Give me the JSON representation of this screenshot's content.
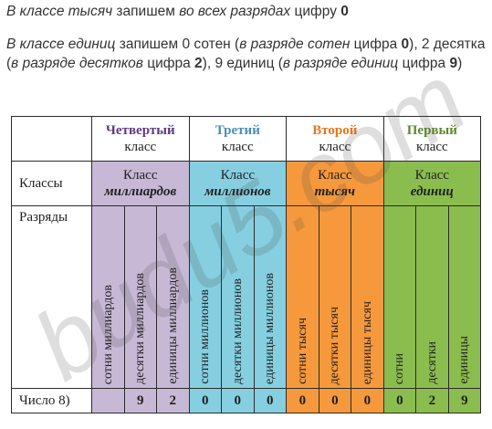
{
  "intro": {
    "line1_italic": "В классе тысяч",
    "line1_mid": " запишем ",
    "line1_italic2": "во всех разрядах",
    "line1_after": " цифру ",
    "line1_digit": "0"
  },
  "explain": {
    "s1_italic": "В классе единиц",
    "s1_text": " запишем 0 сотен (",
    "s1_paren_italic": "в разряде сотен",
    "s1_paren_text": " цифра ",
    "s1_digit": "0",
    "s2_text": "), 2 десятка (",
    "s2_paren_italic": "в разряде десятков",
    "s2_paren_text": " цифра ",
    "s2_digit": "2",
    "s3_text": "), 9 единиц (",
    "s3_paren_italic": "в разряде единиц",
    "s3_paren_text": " цифра ",
    "s3_digit": "9",
    "s3_close": ")"
  },
  "table": {
    "row_labels": {
      "classes": "Классы",
      "ranks": "Разряды",
      "number": "Число 8)"
    },
    "groups": [
      {
        "name": "Четвертый",
        "sub": "класс",
        "class_word": "Класс",
        "class_name": "миллиардов",
        "name_color": "#5e3a82",
        "ranks": [
          "сотни миллиардов",
          "десятки миллиардов",
          "единицы миллиардов"
        ],
        "digits": [
          "",
          "9",
          "2"
        ]
      },
      {
        "name": "Третий",
        "sub": "класс",
        "class_word": "Класс",
        "class_name": "миллионов",
        "name_color": "#4a8fb5",
        "ranks": [
          "сотни миллионов",
          "десятки миллионов",
          "единицы миллионов"
        ],
        "digits": [
          "0",
          "0",
          "0"
        ]
      },
      {
        "name": "Второй",
        "sub": "класс",
        "class_word": "Класс",
        "class_name": "тысяч",
        "name_color": "#e8741c",
        "ranks": [
          "сотни тысяч",
          "десятки тысяч",
          "единицы тысяч"
        ],
        "digits": [
          "0",
          "0",
          "0"
        ]
      },
      {
        "name": "Первый",
        "sub": "класс",
        "class_word": "Класс",
        "class_name": "единиц",
        "name_color": "#5d8a2a",
        "ranks": [
          "сотни",
          "десятки",
          "единицы"
        ],
        "digits": [
          "0",
          "2",
          "9"
        ]
      }
    ]
  },
  "watermark": "budu5.com"
}
